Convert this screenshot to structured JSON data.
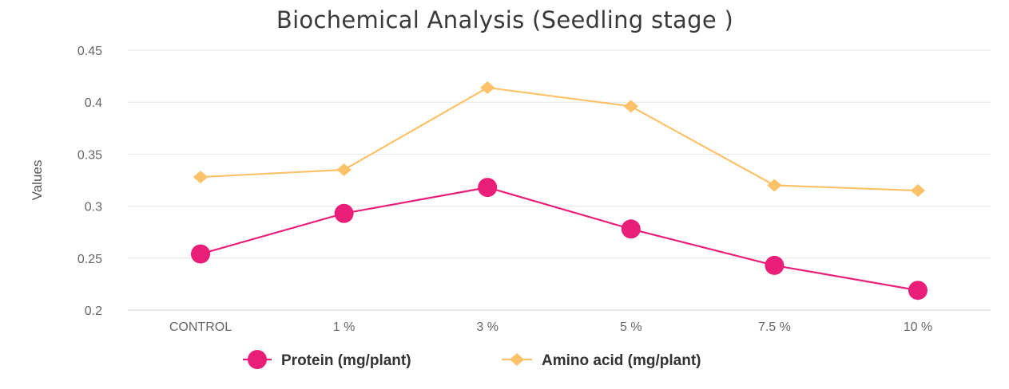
{
  "chart_data": {
    "type": "line",
    "title": "Biochemical Analysis (Seedling stage )",
    "xlabel": "",
    "ylabel": "Values",
    "categories": [
      "CONTROL",
      "1 %",
      "3 %",
      "5 %",
      "7.5 %",
      "10 %"
    ],
    "ylim": [
      0.2,
      0.45
    ],
    "y_ticks": [
      {
        "value": 0.2,
        "label": "0.2"
      },
      {
        "value": 0.25,
        "label": "0.25"
      },
      {
        "value": 0.3,
        "label": "0.3"
      },
      {
        "value": 0.35,
        "label": "0.35"
      },
      {
        "value": 0.4,
        "label": "0.4"
      },
      {
        "value": 0.45,
        "label": "0.45"
      }
    ],
    "grid": true,
    "legend_position": "bottom",
    "series": [
      {
        "name": "Protein (mg/plant)",
        "marker": "circle",
        "color": "#e91e78",
        "values": [
          0.254,
          0.293,
          0.318,
          0.278,
          0.243,
          0.219
        ]
      },
      {
        "name": "Amino acid (mg/plant)",
        "marker": "diamond",
        "color": "#fbc26a",
        "values": [
          0.328,
          0.335,
          0.414,
          0.396,
          0.32,
          0.315
        ]
      }
    ]
  }
}
